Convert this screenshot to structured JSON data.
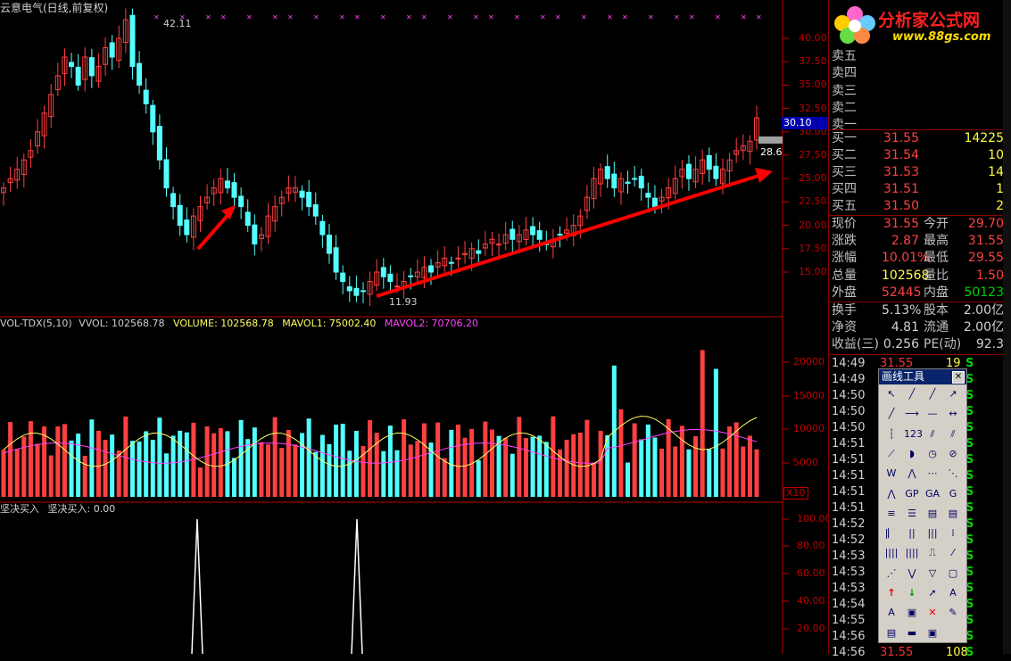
{
  "chart_title": "云意电气(日线,前复权)",
  "price_axis": [
    "40.00",
    "37.50",
    "35.00",
    "32.50",
    "30.00",
    "27.50",
    "25.00",
    "22.50",
    "20.00",
    "17.50",
    "15.00"
  ],
  "price_tag_current": "30.10",
  "price_tag_28": "28.6",
  "high_label": "42.11",
  "low_label": "11.93",
  "vol_header": {
    "name": "VOL-TDX(5,10)",
    "vvol": "VVOL: 102568.78",
    "volume": "VOLUME: 102568.78",
    "mavol1": "MAVOL1: 75002.40",
    "mavol2": "MAVOL2: 70706.20"
  },
  "vol_axis": [
    "20000",
    "15000",
    "10000",
    "5000"
  ],
  "vol_unit": "X10",
  "ind_header": {
    "name": "坚决买入",
    "value": "坚决买入: 0.00"
  },
  "ind_axis": [
    "100.00",
    "80.00",
    "60.00",
    "40.00",
    "20.00"
  ],
  "logo": {
    "title": "分析家公式网",
    "url": "www.88gs.com"
  },
  "sell_labels": [
    "卖五",
    "卖四",
    "卖三",
    "卖二",
    "卖一"
  ],
  "buy_rows": [
    {
      "label": "买一",
      "price": "31.55",
      "vol": "14225"
    },
    {
      "label": "买二",
      "price": "31.54",
      "vol": "10"
    },
    {
      "label": "买三",
      "price": "31.53",
      "vol": "14"
    },
    {
      "label": "买四",
      "price": "31.51",
      "vol": "1"
    },
    {
      "label": "买五",
      "price": "31.50",
      "vol": "2"
    }
  ],
  "stats": [
    {
      "k": "现价",
      "v": "31.55",
      "k2": "今开",
      "v2": "29.70"
    },
    {
      "k": "涨跌",
      "v": "2.87",
      "k2": "最高",
      "v2": "31.55"
    },
    {
      "k": "涨幅",
      "v": "10.01%",
      "k2": "最低",
      "v2": "29.55"
    },
    {
      "k": "总量",
      "v": "102568",
      "k2": "量比",
      "v2": "1.50"
    },
    {
      "k": "外盘",
      "v": "52445",
      "k2": "内盘",
      "v2": "50123"
    }
  ],
  "stats2": [
    {
      "k": "换手",
      "v": "5.13%",
      "k2": "股本",
      "v2": "2.00亿"
    },
    {
      "k": "净资",
      "v": "4.81",
      "k2": "流通",
      "v2": "2.00亿"
    },
    {
      "k": "收益(三)",
      "v": "0.256",
      "k2": "PE(动)",
      "v2": "92.3"
    }
  ],
  "ticks": [
    {
      "t": "14:49",
      "p": "31.55",
      "q": "19",
      "s": "S"
    },
    {
      "t": "14:49",
      "p": "",
      "q": "",
      "s": "S"
    },
    {
      "t": "14:50",
      "p": "",
      "q": "",
      "s": "S"
    },
    {
      "t": "14:50",
      "p": "",
      "q": "",
      "s": "S"
    },
    {
      "t": "14:50",
      "p": "",
      "q": "",
      "s": "S"
    },
    {
      "t": "14:51",
      "p": "",
      "q": "",
      "s": "S"
    },
    {
      "t": "14:51",
      "p": "",
      "q": "",
      "s": "S"
    },
    {
      "t": "14:51",
      "p": "",
      "q": "",
      "s": "S"
    },
    {
      "t": "14:51",
      "p": "",
      "q": "",
      "s": "S"
    },
    {
      "t": "14:51",
      "p": "",
      "q": "",
      "s": "S"
    },
    {
      "t": "14:52",
      "p": "",
      "q": "",
      "s": "S"
    },
    {
      "t": "14:52",
      "p": "",
      "q": "",
      "s": "S"
    },
    {
      "t": "14:53",
      "p": "",
      "q": "",
      "s": "S"
    },
    {
      "t": "14:53",
      "p": "",
      "q": "",
      "s": "S"
    },
    {
      "t": "14:53",
      "p": "",
      "q": "",
      "s": "S"
    },
    {
      "t": "14:54",
      "p": "",
      "q": "",
      "s": "S"
    },
    {
      "t": "14:55",
      "p": "",
      "q": "",
      "s": "S"
    },
    {
      "t": "14:56",
      "p": "",
      "q": "",
      "s": "S"
    },
    {
      "t": "14:56",
      "p": "31.55",
      "q": "108",
      "s": "S"
    }
  ],
  "toolbox_title": "画线工具",
  "colors": {
    "up": "#ff4040",
    "down": "#54ffff",
    "axis": "#c00000",
    "arrow": "#ff0000",
    "mavol1": "#ffff60",
    "mavol2": "#ff40ff",
    "bg": "#000000"
  }
}
